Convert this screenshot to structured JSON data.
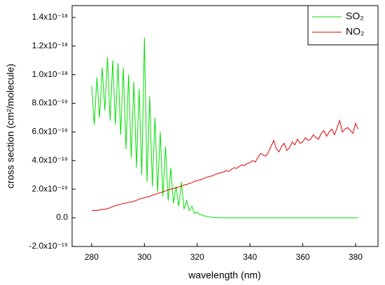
{
  "chart_data": {
    "type": "line",
    "xlabel": "wavelength (nm)",
    "ylabel": "cross section (cm²/molecule)",
    "x": [
      280,
      281,
      282,
      283,
      284,
      285,
      286,
      287,
      288,
      289,
      290,
      291,
      292,
      293,
      294,
      295,
      296,
      297,
      298,
      299,
      300,
      301,
      302,
      303,
      304,
      305,
      306,
      307,
      308,
      309,
      310,
      311,
      312,
      313,
      314,
      315,
      316,
      317,
      318,
      319,
      320,
      321,
      322,
      323,
      324,
      325,
      326,
      327,
      328,
      329,
      330,
      331,
      332,
      333,
      334,
      335,
      336,
      337,
      338,
      339,
      340,
      341,
      342,
      343,
      344,
      345,
      346,
      347,
      348,
      349,
      350,
      351,
      352,
      353,
      354,
      355,
      356,
      357,
      358,
      359,
      360,
      361,
      362,
      363,
      364,
      365,
      366,
      367,
      368,
      369,
      370,
      371,
      372,
      373,
      374,
      375,
      376,
      377,
      378,
      379,
      380,
      381
    ],
    "series": [
      {
        "name": "SO₂",
        "color": "#00e000",
        "values": [
          9.2e-19,
          6.5e-19,
          9.8e-19,
          7e-19,
          1.05e-18,
          7.5e-19,
          1.12e-18,
          6.8e-19,
          1.1e-18,
          6.5e-19,
          1.08e-18,
          5.8e-19,
          1.05e-18,
          4.8e-19,
          1e-18,
          4.2e-19,
          9.5e-19,
          3.5e-19,
          9e-19,
          3e-19,
          1.26e-18,
          2.5e-19,
          8.5e-19,
          2.2e-19,
          7e-19,
          1.8e-19,
          6e-19,
          1.5e-19,
          5e-19,
          1.2e-19,
          3.5e-19,
          1e-19,
          2.2e-19,
          8e-20,
          2.5e-19,
          6e-20,
          1.2e-19,
          5e-20,
          8e-20,
          3e-20,
          4e-20,
          2e-20,
          2e-20,
          1e-20,
          1e-20,
          5e-21,
          3e-21,
          2e-21,
          1e-21,
          0,
          0,
          0,
          0,
          0,
          0,
          0,
          0,
          0,
          0,
          0,
          0,
          0,
          0,
          0,
          0,
          0,
          0,
          0,
          0,
          0,
          0,
          0,
          0,
          0,
          0,
          0,
          0,
          0,
          0,
          0,
          0,
          0,
          0,
          0,
          0,
          0,
          0,
          0,
          0,
          0,
          0,
          0,
          0,
          0,
          0,
          0,
          0,
          0,
          0,
          0,
          0,
          0
        ]
      },
      {
        "name": "NO₂",
        "color": "#e00000",
        "values": [
          5e-20,
          5.2e-20,
          5.1e-20,
          5.5e-20,
          5.8e-20,
          6e-20,
          6.3e-20,
          7e-20,
          7.8e-20,
          8.5e-20,
          9e-20,
          9.5e-20,
          1e-19,
          1.02e-19,
          1.08e-19,
          1.1e-19,
          1.15e-19,
          1.22e-19,
          1.3e-19,
          1.35e-19,
          1.4e-19,
          1.45e-19,
          1.5e-19,
          1.58e-19,
          1.62e-19,
          1.7e-19,
          1.75e-19,
          1.82e-19,
          1.88e-19,
          1.95e-19,
          2e-19,
          2.05e-19,
          2.1e-19,
          2.15e-19,
          2.2e-19,
          2.3e-19,
          2.32e-19,
          2.4e-19,
          2.45e-19,
          2.55e-19,
          2.6e-19,
          2.65e-19,
          2.7e-19,
          2.8e-19,
          2.85e-19,
          2.9e-19,
          2.95e-19,
          3.05e-19,
          3.1e-19,
          3.15e-19,
          3.2e-19,
          3.3e-19,
          3.25e-19,
          3.4e-19,
          3.5e-19,
          3.45e-19,
          3.6e-19,
          3.7e-19,
          3.65e-19,
          3.8e-19,
          3.85e-19,
          4e-19,
          3.9e-19,
          4.2e-19,
          4.5e-19,
          4.4e-19,
          4.3e-19,
          4.6e-19,
          5e-19,
          5.4e-19,
          4.8e-19,
          4.6e-19,
          5e-19,
          5.2e-19,
          4.7e-19,
          4.9e-19,
          5.3e-19,
          5.1e-19,
          5.5e-19,
          5.2e-19,
          5.3e-19,
          5.6e-19,
          5.4e-19,
          5.5e-19,
          5.8e-19,
          5.6e-19,
          5.5e-19,
          5.9e-19,
          6.1e-19,
          5.7e-19,
          6e-19,
          6.2e-19,
          5.8e-19,
          6.3e-19,
          6.8e-19,
          6e-19,
          6.2e-19,
          6.3e-19,
          6.1e-19,
          5.9e-19,
          6.6e-19,
          6.2e-19
        ]
      }
    ],
    "xlim": [
      272.6,
      388.5
    ],
    "xticks": [
      280,
      300,
      320,
      340,
      360,
      380
    ],
    "ylim": [
      -2.007e-19,
      1.483e-18
    ],
    "yticks": [
      {
        "value": -2e-19,
        "label": "-2.0x10⁻¹⁹"
      },
      {
        "value": 0,
        "label": "0.0"
      },
      {
        "value": 2e-19,
        "label": "2.0x10⁻¹⁹"
      },
      {
        "value": 4e-19,
        "label": "4.0x10⁻¹⁹"
      },
      {
        "value": 6e-19,
        "label": "6.0x10⁻¹⁹"
      },
      {
        "value": 8e-19,
        "label": "8.0x10⁻¹⁹"
      },
      {
        "value": 1e-18,
        "label": "1.0x10⁻¹⁸"
      },
      {
        "value": 1.2e-18,
        "label": "1.2x10⁻¹⁸"
      },
      {
        "value": 1.4e-18,
        "label": "1.4x10⁻¹⁸"
      }
    ],
    "legend": "upper right",
    "grid": false
  }
}
